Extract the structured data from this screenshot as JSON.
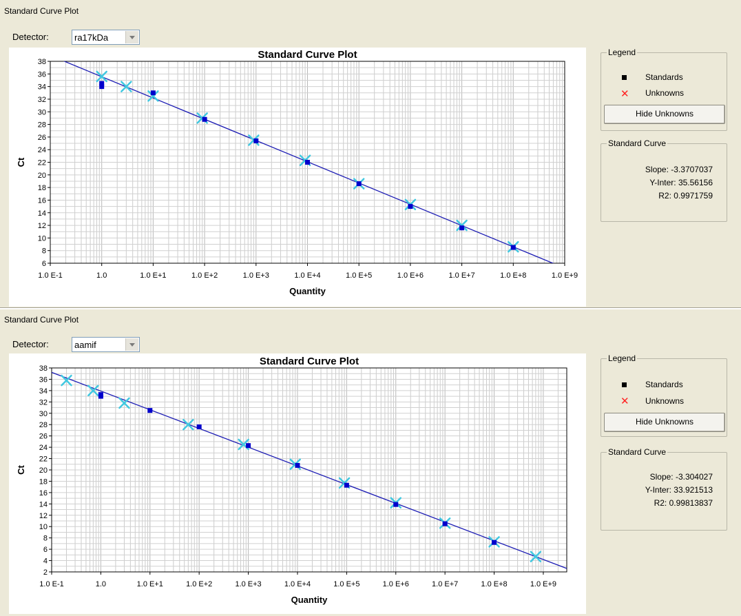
{
  "panels": [
    {
      "panel_title": "Standard Curve Plot",
      "detector_label": "Detector:",
      "detector_value": "ra17kDa",
      "legend_title": "Legend",
      "legend_standards": "Standards",
      "legend_unknowns": "Unknowns",
      "hide_button": "Hide Unknowns",
      "curve_title": "Standard Curve",
      "slope": "Slope: -3.3707037",
      "yinter": "Y-Inter: 35.56156",
      "r2": "R2: 0.9971759"
    },
    {
      "panel_title": "Standard Curve Plot",
      "detector_label": "Detector:",
      "detector_value": "aamif",
      "legend_title": "Legend",
      "legend_standards": "Standards",
      "legend_unknowns": "Unknowns",
      "hide_button": "Hide Unknowns",
      "curve_title": "Standard Curve",
      "slope": "Slope: -3.304027",
      "yinter": "Y-Inter: 33.921513",
      "r2": "R2: 0.99813837"
    }
  ],
  "chart_data": [
    {
      "type": "scatter",
      "title": "Standard Curve Plot",
      "xlabel": "Quantity",
      "ylabel": "Ct",
      "x_scale": "log",
      "xlim": [
        0.1,
        1000000000
      ],
      "ylim": [
        6,
        38
      ],
      "x_tick_labels": [
        "1.0 E-1",
        "1.0",
        "1.0 E+1",
        "1.0 E+2",
        "1.0 E+3",
        "1.0 E+4",
        "1.0 E+5",
        "1.0 E+6",
        "1.0 E+7",
        "1.0 E+8",
        "1.0 E+9"
      ],
      "y_ticks": [
        6,
        8,
        10,
        12,
        14,
        16,
        18,
        20,
        22,
        24,
        26,
        28,
        30,
        32,
        34,
        36,
        38
      ],
      "grid": true,
      "line": {
        "slope": -3.3707037,
        "intercept": 35.56156,
        "color": "#1c1cb4"
      },
      "standards": [
        {
          "x": 1,
          "y": 34.5
        },
        {
          "x": 1,
          "y": 34.0
        },
        {
          "x": 10,
          "y": 33.0
        },
        {
          "x": 100,
          "y": 28.8
        },
        {
          "x": 1000,
          "y": 25.4
        },
        {
          "x": 10000,
          "y": 22.0
        },
        {
          "x": 100000,
          "y": 18.6
        },
        {
          "x": 1000000,
          "y": 15.0
        },
        {
          "x": 10000000,
          "y": 11.6
        },
        {
          "x": 100000000,
          "y": 8.5
        }
      ],
      "unknowns": [
        {
          "x": 1,
          "y": 35.6
        },
        {
          "x": 3,
          "y": 34.0
        },
        {
          "x": 10,
          "y": 32.5
        },
        {
          "x": 90,
          "y": 29.0
        },
        {
          "x": 900,
          "y": 25.5
        },
        {
          "x": 9000,
          "y": 22.3
        },
        {
          "x": 100000,
          "y": 18.6
        },
        {
          "x": 1000000,
          "y": 15.3
        },
        {
          "x": 10000000,
          "y": 12.0
        },
        {
          "x": 100000000,
          "y": 8.6
        }
      ],
      "colors": {
        "standards": "#0000cc",
        "unknowns_plot": "#40c8e0",
        "unknowns_legend": "#ff2222"
      }
    },
    {
      "type": "scatter",
      "title": "Standard Curve Plot",
      "xlabel": "Quantity",
      "ylabel": "Ct",
      "x_scale": "log",
      "xlim": [
        0.1,
        3000000000
      ],
      "ylim": [
        2,
        38
      ],
      "x_tick_labels": [
        "1.0 E-1",
        "1.0",
        "1.0 E+1",
        "1.0 E+2",
        "1.0 E+3",
        "1.0 E+4",
        "1.0 E+5",
        "1.0 E+6",
        "1.0 E+7",
        "1.0 E+8",
        "1.0 E+9"
      ],
      "y_ticks": [
        2,
        4,
        6,
        8,
        10,
        12,
        14,
        16,
        18,
        20,
        22,
        24,
        26,
        28,
        30,
        32,
        34,
        36,
        38
      ],
      "grid": true,
      "line": {
        "slope": -3.304027,
        "intercept": 33.921513,
        "color": "#1c1cb4"
      },
      "standards": [
        {
          "x": 1,
          "y": 33.0
        },
        {
          "x": 1,
          "y": 33.3
        },
        {
          "x": 10,
          "y": 30.5
        },
        {
          "x": 100,
          "y": 27.6
        },
        {
          "x": 1000,
          "y": 24.3
        },
        {
          "x": 10000,
          "y": 20.8
        },
        {
          "x": 100000,
          "y": 17.3
        },
        {
          "x": 1000000,
          "y": 13.9
        },
        {
          "x": 10000000,
          "y": 10.5
        },
        {
          "x": 100000000,
          "y": 7.2
        }
      ],
      "unknowns": [
        {
          "x": 0.2,
          "y": 35.8
        },
        {
          "x": 0.7,
          "y": 34.0
        },
        {
          "x": 3,
          "y": 31.8
        },
        {
          "x": 60,
          "y": 28.0
        },
        {
          "x": 800,
          "y": 24.5
        },
        {
          "x": 9000,
          "y": 21.0
        },
        {
          "x": 90000,
          "y": 17.7
        },
        {
          "x": 1000000,
          "y": 14.2
        },
        {
          "x": 10000000,
          "y": 10.6
        },
        {
          "x": 100000000,
          "y": 7.3
        },
        {
          "x": 700000000,
          "y": 4.7
        }
      ],
      "colors": {
        "standards": "#0000cc",
        "unknowns_plot": "#40c8e0",
        "unknowns_legend": "#ff2222"
      }
    }
  ]
}
